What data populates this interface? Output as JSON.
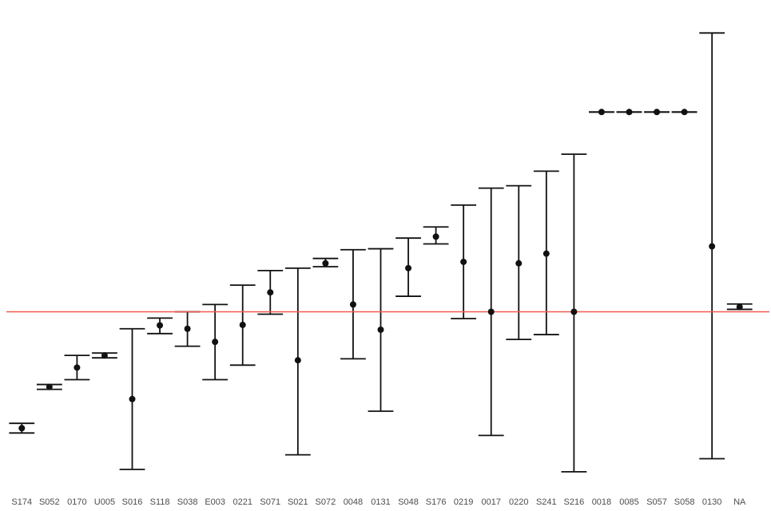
{
  "chart_data": {
    "type": "errorbar",
    "title": "",
    "xlabel": "",
    "ylabel": "",
    "categories": [
      "S174",
      "S052",
      "0170",
      "U005",
      "S016",
      "S118",
      "S038",
      "E003",
      "0221",
      "S071",
      "S021",
      "S072",
      "0048",
      "0131",
      "S048",
      "S176",
      "0219",
      "0017",
      "0220",
      "S241",
      "S216",
      "0018",
      "0085",
      "S057",
      "S058",
      "0130",
      "NA"
    ],
    "points": [
      {
        "label": "S174",
        "center": -2.4,
        "lower": -2.5,
        "upper": -2.3
      },
      {
        "label": "S052",
        "center": -1.55,
        "lower": -1.6,
        "upper": -1.5
      },
      {
        "label": "0170",
        "center": -1.15,
        "lower": -1.4,
        "upper": -0.9
      },
      {
        "label": "U005",
        "center": -0.9,
        "lower": -0.95,
        "upper": -0.85
      },
      {
        "label": "S016",
        "center": -1.8,
        "lower": -3.25,
        "upper": -0.35
      },
      {
        "label": "S118",
        "center": -0.28,
        "lower": -0.45,
        "upper": -0.13
      },
      {
        "label": "S038",
        "center": -0.35,
        "lower": -0.71,
        "upper": 0.0
      },
      {
        "label": "E003",
        "center": -0.62,
        "lower": -1.4,
        "upper": 0.15
      },
      {
        "label": "0221",
        "center": -0.27,
        "lower": -1.1,
        "upper": 0.55
      },
      {
        "label": "S071",
        "center": 0.4,
        "lower": -0.05,
        "upper": 0.85
      },
      {
        "label": "S021",
        "center": -1.0,
        "lower": -2.95,
        "upper": 0.9
      },
      {
        "label": "S072",
        "center": 1.0,
        "lower": 0.93,
        "upper": 1.1
      },
      {
        "label": "0048",
        "center": 0.15,
        "lower": -0.97,
        "upper": 1.28
      },
      {
        "label": "0131",
        "center": -0.37,
        "lower": -2.05,
        "upper": 1.3
      },
      {
        "label": "S048",
        "center": 0.9,
        "lower": 0.32,
        "upper": 1.52
      },
      {
        "label": "S176",
        "center": 1.55,
        "lower": 1.4,
        "upper": 1.75
      },
      {
        "label": "0219",
        "center": 1.03,
        "lower": -0.14,
        "upper": 2.2
      },
      {
        "label": "0017",
        "center": 0.0,
        "lower": -2.55,
        "upper": 2.55
      },
      {
        "label": "0220",
        "center": 1.0,
        "lower": -0.57,
        "upper": 2.6
      },
      {
        "label": "S241",
        "center": 1.2,
        "lower": -0.47,
        "upper": 2.9
      },
      {
        "label": "S216",
        "center": 0.0,
        "lower": -3.3,
        "upper": 3.25
      },
      {
        "label": "0018",
        "center": 4.12,
        "lower": 4.12,
        "upper": 4.12
      },
      {
        "label": "0085",
        "center": 4.12,
        "lower": 4.12,
        "upper": 4.12
      },
      {
        "label": "S057",
        "center": 4.12,
        "lower": 4.12,
        "upper": 4.12
      },
      {
        "label": "S058",
        "center": 4.12,
        "lower": 4.12,
        "upper": 4.12
      },
      {
        "label": "0130",
        "center": 1.35,
        "lower": -3.03,
        "upper": 5.75
      },
      {
        "label": "NA",
        "center": 0.1,
        "lower": 0.05,
        "upper": 0.16
      }
    ],
    "reference_line": {
      "y": 0,
      "color": "#f05a4f"
    },
    "ylim": [
      -3.45,
      6.2
    ],
    "grid": false,
    "legend": "none",
    "colors": {
      "point": "#111111",
      "errorbar": "#111111",
      "reference": "#f05a4f",
      "tick_label": "#4d4d4d"
    }
  }
}
